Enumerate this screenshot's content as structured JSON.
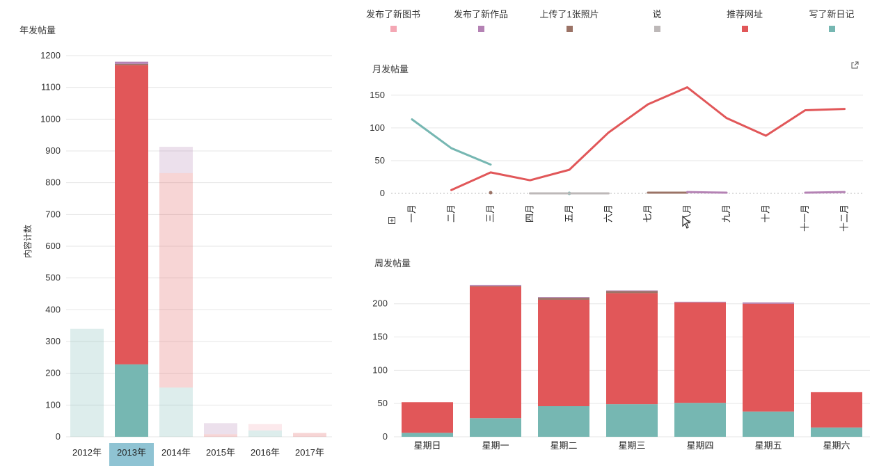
{
  "legend": {
    "items": [
      {
        "label": "发布了新图书",
        "color": "#f4a7b4"
      },
      {
        "label": "发布了新作品",
        "color": "#b482b4"
      },
      {
        "label": "上传了1张照片",
        "color": "#9b7366"
      },
      {
        "label": "说",
        "color": "#bdb8b8"
      },
      {
        "label": "推荐网址",
        "color": "#e15759"
      },
      {
        "label": "写了新日记",
        "color": "#76b7b2"
      }
    ]
  },
  "yearly": {
    "title": "年发帖量",
    "ylabel": "内容计数",
    "selected": "2013年"
  },
  "monthly": {
    "title": "月发帖量"
  },
  "weekly": {
    "title": "周发帖量"
  },
  "icons": {
    "expand": "external-link-icon",
    "plus": "plus-box-icon",
    "cursor": "mouse-pointer-icon"
  },
  "chart_data": [
    {
      "type": "bar",
      "stacked": true,
      "title": "年发帖量",
      "ylabel": "内容计数",
      "ylim": [
        0,
        1200
      ],
      "yticks": [
        0,
        100,
        200,
        300,
        400,
        500,
        600,
        700,
        800,
        900,
        1000,
        1100,
        1200
      ],
      "categories": [
        "2012年",
        "2013年",
        "2014年",
        "2015年",
        "2016年",
        "2017年"
      ],
      "highlighted_category": "2013年",
      "series": [
        {
          "name": "写了新日记",
          "color": "#76b7b2",
          "values": [
            340,
            228,
            155,
            0,
            20,
            0
          ]
        },
        {
          "name": "推荐网址",
          "color": "#e15759",
          "values": [
            0,
            942,
            675,
            8,
            0,
            12
          ]
        },
        {
          "name": "说",
          "color": "#bdb8b8",
          "values": [
            0,
            0,
            0,
            0,
            0,
            0
          ]
        },
        {
          "name": "上传了1张照片",
          "color": "#9b7366",
          "values": [
            0,
            4,
            0,
            0,
            0,
            0
          ]
        },
        {
          "name": "发布了新作品",
          "color": "#b482b4",
          "values": [
            0,
            7,
            83,
            35,
            0,
            0
          ]
        },
        {
          "name": "发布了新图书",
          "color": "#f4a7b4",
          "values": [
            0,
            0,
            0,
            0,
            20,
            0
          ]
        }
      ]
    },
    {
      "type": "line",
      "title": "月发帖量",
      "ylim": [
        0,
        170
      ],
      "yticks": [
        0,
        50,
        100,
        150
      ],
      "categories": [
        "一月",
        "二月",
        "三月",
        "四月",
        "五月",
        "六月",
        "七月",
        "八月",
        "九月",
        "十月",
        "十一月",
        "十二月"
      ],
      "series": [
        {
          "name": "写了新日记",
          "color": "#76b7b2",
          "values": [
            113,
            69,
            44,
            null,
            0,
            null,
            null,
            null,
            null,
            null,
            null,
            null
          ]
        },
        {
          "name": "推荐网址",
          "color": "#e15759",
          "values": [
            null,
            5,
            32,
            20,
            36,
            93,
            136,
            162,
            115,
            88,
            127,
            129
          ]
        },
        {
          "name": "说",
          "color": "#bdb8b8",
          "values": [
            null,
            null,
            null,
            0,
            0,
            0,
            null,
            null,
            null,
            null,
            null,
            null
          ]
        },
        {
          "name": "上传了1张照片",
          "color": "#9b7366",
          "values": [
            null,
            null,
            1,
            null,
            null,
            null,
            1,
            1,
            null,
            null,
            null,
            null
          ]
        },
        {
          "name": "发布了新作品",
          "color": "#b482b4",
          "values": [
            null,
            null,
            null,
            null,
            null,
            null,
            null,
            2,
            1,
            null,
            1,
            2
          ]
        }
      ]
    },
    {
      "type": "bar",
      "stacked": true,
      "title": "周发帖量",
      "ylim": [
        0,
        230
      ],
      "yticks": [
        0,
        50,
        100,
        150,
        200
      ],
      "categories": [
        "星期日",
        "星期一",
        "星期二",
        "星期三",
        "星期四",
        "星期五",
        "星期六"
      ],
      "series": [
        {
          "name": "写了新日记",
          "color": "#76b7b2",
          "values": [
            6,
            28,
            46,
            49,
            51,
            38,
            14
          ]
        },
        {
          "name": "推荐网址",
          "color": "#e15759",
          "values": [
            46,
            198,
            160,
            167,
            151,
            162,
            53
          ]
        },
        {
          "name": "上传了1张照片",
          "color": "#9b7366",
          "values": [
            0,
            1,
            3,
            3,
            0,
            0,
            0
          ]
        },
        {
          "name": "发布了新作品",
          "color": "#b482b4",
          "values": [
            0,
            1,
            1,
            1,
            1,
            2,
            0
          ]
        }
      ]
    }
  ]
}
